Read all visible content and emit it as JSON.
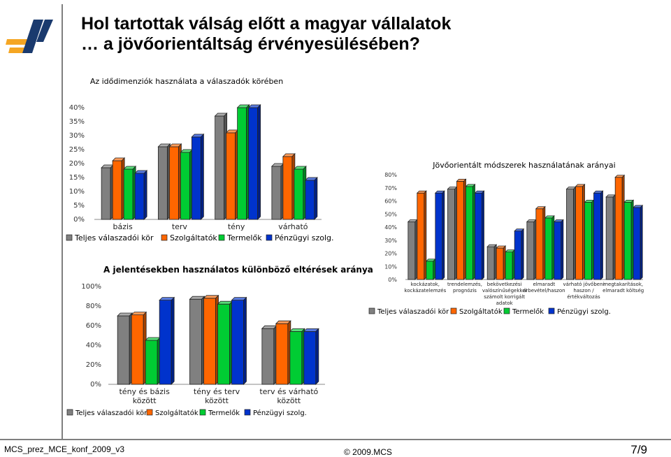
{
  "title": {
    "line1": "Hol tartottak válság előtt a magyar vállalatok",
    "line2": "… a jövőorientáltság érvényesülésében?"
  },
  "footer": {
    "left": "MCS_prez_MCE_konf_2009_v3",
    "center": "© 2009.MCS",
    "page": "7/9"
  },
  "series_names": [
    "Teljes válaszadói kör",
    "Szolgáltatók",
    "Termelők",
    "Pénzügyi szolg."
  ],
  "series_colors": [
    "#808080",
    "#ff6600",
    "#00cc33",
    "#0033cc"
  ],
  "chart_data": [
    {
      "type": "bar",
      "title": "Az idődimenziók használata a válaszadók körében",
      "categories": [
        "bázis",
        "terv",
        "tény",
        "várható"
      ],
      "ylim": [
        0,
        40
      ],
      "yticks": [
        "0%",
        "5%",
        "10%",
        "15%",
        "20%",
        "25%",
        "30%",
        "35%",
        "40%"
      ],
      "grid": false,
      "legend": "bottom",
      "series": [
        {
          "name": "Teljes válaszadói kör",
          "values": [
            18.5,
            26,
            37,
            19
          ]
        },
        {
          "name": "Szolgáltatók",
          "values": [
            21,
            26,
            31,
            22.5
          ]
        },
        {
          "name": "Termelők",
          "values": [
            18,
            24,
            40,
            18
          ]
        },
        {
          "name": "Pénzügyi szolg.",
          "values": [
            16.5,
            29.5,
            40,
            14
          ]
        }
      ]
    },
    {
      "type": "bar",
      "title": "Jövőorientált módszerek használatának arányai",
      "categories": [
        [
          "kockázatok,",
          "kockázatelemzés"
        ],
        [
          "trendelemzés,",
          "prognózis"
        ],
        [
          "bekövetkezési",
          "valószínűségekkel",
          "számolt korrigált",
          "adatok"
        ],
        [
          "elmaradt",
          "árbevétel/haszon"
        ],
        [
          "várható jövőbeni",
          "haszon /",
          "értékváltozás"
        ],
        [
          "megtakarítások,",
          "elmaradt költség"
        ]
      ],
      "ylim": [
        0,
        80
      ],
      "yticks": [
        "0%",
        "10%",
        "20%",
        "30%",
        "40%",
        "50%",
        "60%",
        "70%",
        "80%"
      ],
      "grid": false,
      "legend": "bottom",
      "series": [
        {
          "name": "Teljes válaszadói kör",
          "values": [
            44,
            69,
            25,
            44,
            69,
            63
          ]
        },
        {
          "name": "Szolgáltatók",
          "values": [
            66,
            75,
            24,
            54,
            71,
            78
          ]
        },
        {
          "name": "Termelők",
          "values": [
            14,
            71,
            21,
            47,
            59,
            59
          ]
        },
        {
          "name": "Pénzügyi szolg.",
          "values": [
            66,
            66,
            37,
            44,
            66,
            55
          ]
        }
      ]
    },
    {
      "type": "bar",
      "title": "A jelentésekben használatos különböző eltérések aránya",
      "categories": [
        [
          "tény és bázis",
          "között"
        ],
        [
          "tény és terv",
          "között"
        ],
        [
          "terv és várható",
          "között"
        ]
      ],
      "ylim": [
        0,
        100
      ],
      "yticks": [
        "0%",
        "20%",
        "40%",
        "60%",
        "80%",
        "100%"
      ],
      "grid": false,
      "legend": "bottom",
      "series": [
        {
          "name": "Teljes válaszadói kör",
          "values": [
            70,
            87,
            57
          ]
        },
        {
          "name": "Szolgáltatók",
          "values": [
            71,
            88,
            62
          ]
        },
        {
          "name": "Termelők",
          "values": [
            45,
            82,
            54
          ]
        },
        {
          "name": "Pénzügyi szolg.",
          "values": [
            86,
            86,
            54
          ]
        }
      ]
    }
  ]
}
